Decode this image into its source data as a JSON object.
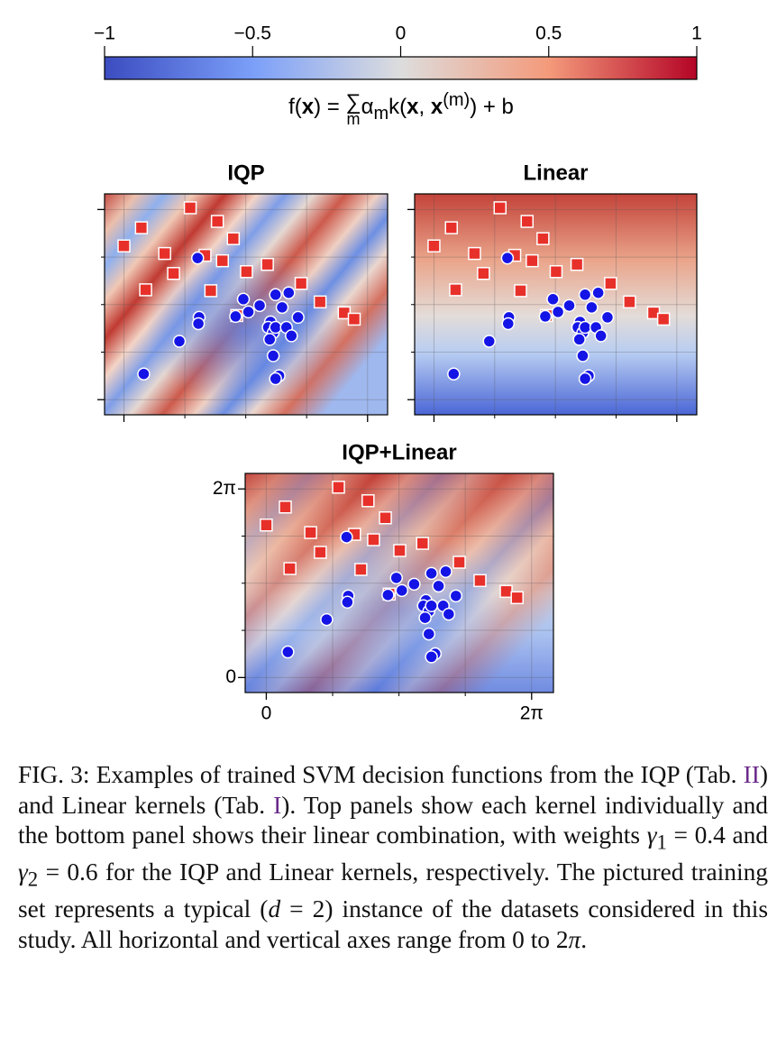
{
  "colorbar": {
    "lim": [
      -1,
      1
    ],
    "ticks": [
      {
        "value": -1,
        "label": "−1"
      },
      {
        "value": -0.5,
        "label": "−0.5"
      },
      0,
      0.5,
      1
    ],
    "label": [
      "f(",
      "x",
      ") = ",
      "∑",
      "m",
      "α",
      "m",
      "k(",
      "x",
      ", ",
      "x",
      "(m)",
      ") + b"
    ]
  },
  "chart_data": [
    {
      "type": "scatter",
      "title": "IQP",
      "xlim": [
        -0.5,
        6.8
      ],
      "ylim": [
        -0.5,
        6.8
      ],
      "xticks": [
        {
          "value": 0,
          "label": "0"
        },
        {
          "value": 6.283,
          "label": "2π"
        }
      ],
      "yticks": [
        {
          "value": 0,
          "label": "0"
        },
        {
          "value": 6.283,
          "label": "2π"
        }
      ],
      "minor_ticks": [
        1.571,
        3.142,
        4.712
      ],
      "tick_labels": false,
      "grid": true,
      "series": [
        {
          "marker": "square",
          "color": "#e8302a",
          "x": [
            0,
            0.45,
            1.71,
            2.41,
            2.82,
            1.05,
            1.28,
            0.56,
            2.09,
            2.54,
            2.24,
            3.16,
            3.7,
            4.57,
            5.06,
            5.68,
            5.94,
            2.91
          ],
          "values": [
            5.08,
            5.68,
            6.34,
            5.89,
            5.32,
            4.83,
            4.17,
            3.63,
            4.77,
            4.59,
            3.6,
            4.23,
            4.47,
            3.84,
            3.23,
            2.87,
            2.66,
            2.78
          ]
        },
        {
          "marker": "circle",
          "color": "#1414e6",
          "x": [
            1.9,
            1.94,
            1.92,
            1.43,
            0.51,
            3.08,
            2.88,
            3.21,
            3.5,
            3.91,
            4.25,
            4.08,
            3.78,
            3.72,
            3.85,
            3.76,
            3.91,
            4.19,
            4.32,
            4.49,
            3.85,
            4.0,
            3.91
          ],
          "values": [
            4.68,
            2.72,
            2.51,
            1.93,
            0.85,
            3.32,
            2.75,
            2.9,
            3.11,
            3.47,
            3.53,
            3.05,
            2.57,
            2.39,
            2.21,
            1.99,
            2.39,
            2.39,
            2.11,
            2.72,
            1.45,
            0.79,
            0.69
          ]
        }
      ]
    },
    {
      "type": "scatter",
      "title": "Linear",
      "xlim": [
        -0.5,
        6.8
      ],
      "ylim": [
        -0.5,
        6.8
      ],
      "xticks": [
        {
          "value": 0,
          "label": "0"
        },
        {
          "value": 6.283,
          "label": "2π"
        }
      ],
      "yticks": [
        {
          "value": 0,
          "label": "0"
        },
        {
          "value": 6.283,
          "label": "2π"
        }
      ],
      "minor_ticks": [
        1.571,
        3.142,
        4.712
      ],
      "tick_labels": false,
      "grid": true,
      "series": [
        {
          "marker": "square",
          "color": "#e8302a",
          "x": [
            0,
            0.45,
            1.71,
            2.41,
            2.82,
            1.05,
            1.28,
            0.56,
            2.09,
            2.54,
            2.24,
            3.16,
            3.7,
            4.57,
            5.06,
            5.68,
            5.94,
            2.91
          ],
          "values": [
            5.08,
            5.68,
            6.34,
            5.89,
            5.32,
            4.83,
            4.17,
            3.63,
            4.77,
            4.59,
            3.6,
            4.23,
            4.47,
            3.84,
            3.23,
            2.87,
            2.66,
            2.78
          ]
        },
        {
          "marker": "circle",
          "color": "#1414e6",
          "x": [
            1.9,
            1.94,
            1.92,
            1.43,
            0.51,
            3.08,
            2.88,
            3.21,
            3.5,
            3.91,
            4.25,
            4.08,
            3.78,
            3.72,
            3.85,
            3.76,
            3.91,
            4.19,
            4.32,
            4.49,
            3.85,
            4.0,
            3.91
          ],
          "values": [
            4.68,
            2.72,
            2.51,
            1.93,
            0.85,
            3.32,
            2.75,
            2.9,
            3.11,
            3.47,
            3.53,
            3.05,
            2.57,
            2.39,
            2.21,
            1.99,
            2.39,
            2.39,
            2.11,
            2.72,
            1.45,
            0.79,
            0.69
          ]
        }
      ]
    },
    {
      "type": "scatter",
      "title": "IQP+Linear",
      "xlim": [
        -0.5,
        6.8
      ],
      "ylim": [
        -0.5,
        6.8
      ],
      "xticks": [
        {
          "value": 0,
          "label": "0"
        },
        {
          "value": 6.283,
          "label": "2π"
        }
      ],
      "yticks": [
        {
          "value": 0,
          "label": "0"
        },
        {
          "value": 6.283,
          "label": "2π"
        }
      ],
      "minor_ticks": [
        1.571,
        3.142,
        4.712
      ],
      "tick_labels": true,
      "grid": true,
      "series": [
        {
          "marker": "square",
          "color": "#e8302a",
          "x": [
            0,
            0.45,
            1.71,
            2.41,
            2.82,
            1.05,
            1.28,
            0.56,
            2.09,
            2.54,
            2.24,
            3.16,
            3.7,
            4.57,
            5.06,
            5.68,
            5.94,
            2.91
          ],
          "values": [
            5.08,
            5.68,
            6.34,
            5.89,
            5.32,
            4.83,
            4.17,
            3.63,
            4.77,
            4.59,
            3.6,
            4.23,
            4.47,
            3.84,
            3.23,
            2.87,
            2.66,
            2.78
          ]
        },
        {
          "marker": "circle",
          "color": "#1414e6",
          "x": [
            1.9,
            1.94,
            1.92,
            1.43,
            0.51,
            3.08,
            2.88,
            3.21,
            3.5,
            3.91,
            4.25,
            4.08,
            3.78,
            3.72,
            3.85,
            3.76,
            3.91,
            4.19,
            4.32,
            4.49,
            3.85,
            4.0,
            3.91
          ],
          "values": [
            4.68,
            2.72,
            2.51,
            1.93,
            0.85,
            3.32,
            2.75,
            2.9,
            3.11,
            3.47,
            3.53,
            3.05,
            2.57,
            2.39,
            2.21,
            1.99,
            2.39,
            2.39,
            2.11,
            2.72,
            1.45,
            0.79,
            0.69
          ]
        }
      ]
    }
  ],
  "caption": [
    "FIG. 3: Examples of trained SVM decision functions from the IQP (Tab. ",
    "II",
    ") and Linear kernels (Tab. ",
    "I",
    "). Top panels show each kernel individually and the bottom panel shows their linear combination, with weights ",
    "γ",
    "1",
    " = 0.4 and ",
    "γ",
    "2",
    " = 0.6",
    " for the IQP and Linear kernels, respectively. The pictured training set represents a typical (",
    "d",
    " = 2) instance of the datasets considered in this study. All horizontal and vertical axes range from 0 to 2",
    "π",
    "."
  ]
}
